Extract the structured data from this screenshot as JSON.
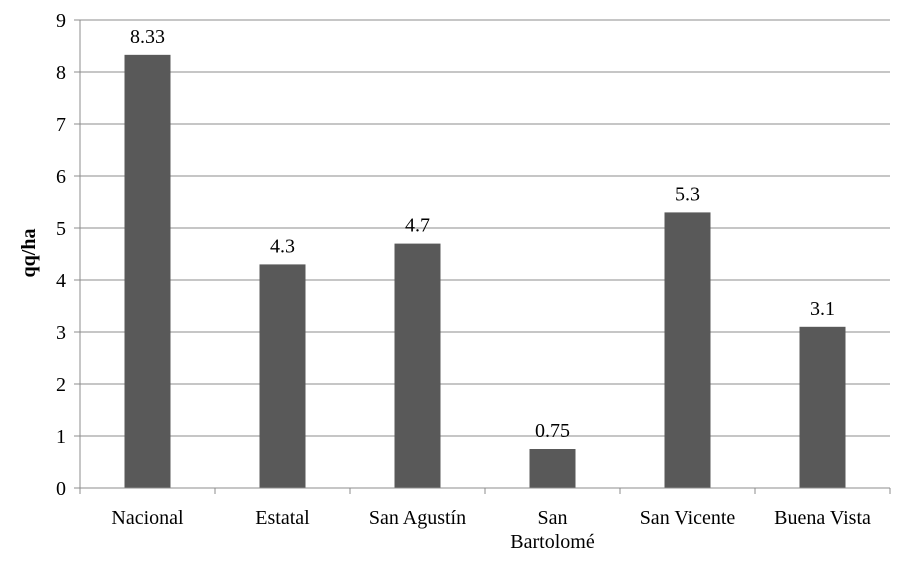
{
  "chart_data": {
    "type": "bar",
    "title": "",
    "xlabel": "",
    "ylabel": "qq/ha",
    "ylim": [
      0,
      9
    ],
    "yticks": [
      0,
      1,
      2,
      3,
      4,
      5,
      6,
      7,
      8,
      9
    ],
    "grid": true,
    "legend": "none",
    "categories": [
      [
        "Nacional"
      ],
      [
        "Estatal"
      ],
      [
        "San Agustín"
      ],
      [
        "San",
        "Bartolomé"
      ],
      [
        "San Vicente"
      ],
      [
        "Buena Vista"
      ]
    ],
    "values": [
      8.33,
      4.3,
      4.7,
      0.75,
      5.3,
      3.1
    ],
    "value_labels": [
      "8.33",
      "4.3",
      "4.7",
      "0.75",
      "5.3",
      "3.1"
    ],
    "colors": {
      "bar": "#595959",
      "grid": "#8c8c8c",
      "axis": "#8c8c8c"
    }
  }
}
